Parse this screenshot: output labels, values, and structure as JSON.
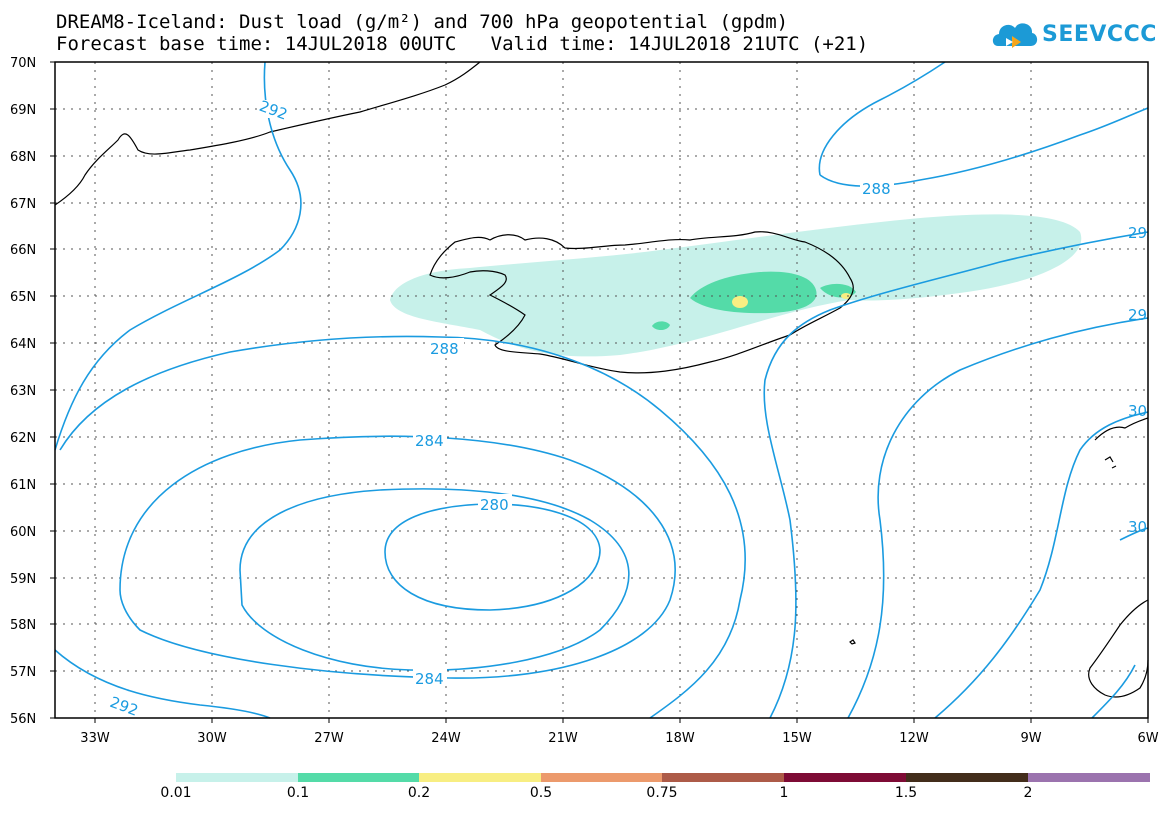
{
  "title": {
    "line1": "DREAM8-Iceland: Dust load (g/m²) and 700 hPa geopotential (gpdm)",
    "line2": "Forecast base time: 14JUL2018 00UTC   Valid time: 14JUL2018 21UTC (+21)"
  },
  "logo": {
    "text": "SEEVCCC",
    "icon": "cloud-icon"
  },
  "map": {
    "lat_labels": [
      "70N",
      "69N",
      "68N",
      "67N",
      "66N",
      "65N",
      "64N",
      "63N",
      "62N",
      "61N",
      "60N",
      "59N",
      "58N",
      "57N",
      "56N"
    ],
    "lon_labels": [
      "33W",
      "30W",
      "27W",
      "24W",
      "21W",
      "18W",
      "15W",
      "12W",
      "9W",
      "6W"
    ],
    "contour_labels": [
      "292",
      "288",
      "288",
      "284",
      "280",
      "284",
      "292",
      "29",
      "29",
      "30",
      "30"
    ],
    "contour_color": "#1a9be0",
    "coastline_color": "#000000"
  },
  "colorbar": {
    "colors": [
      "#c7f1ea",
      "#54dba8",
      "#f8ee82",
      "#ec9a6c",
      "#ad5b48",
      "#7e0b35",
      "#432d1b",
      "#9b73ae"
    ],
    "labels": [
      "0.01",
      "0.1",
      "0.2",
      "0.5",
      "0.75",
      "1",
      "1.5",
      "2"
    ]
  }
}
